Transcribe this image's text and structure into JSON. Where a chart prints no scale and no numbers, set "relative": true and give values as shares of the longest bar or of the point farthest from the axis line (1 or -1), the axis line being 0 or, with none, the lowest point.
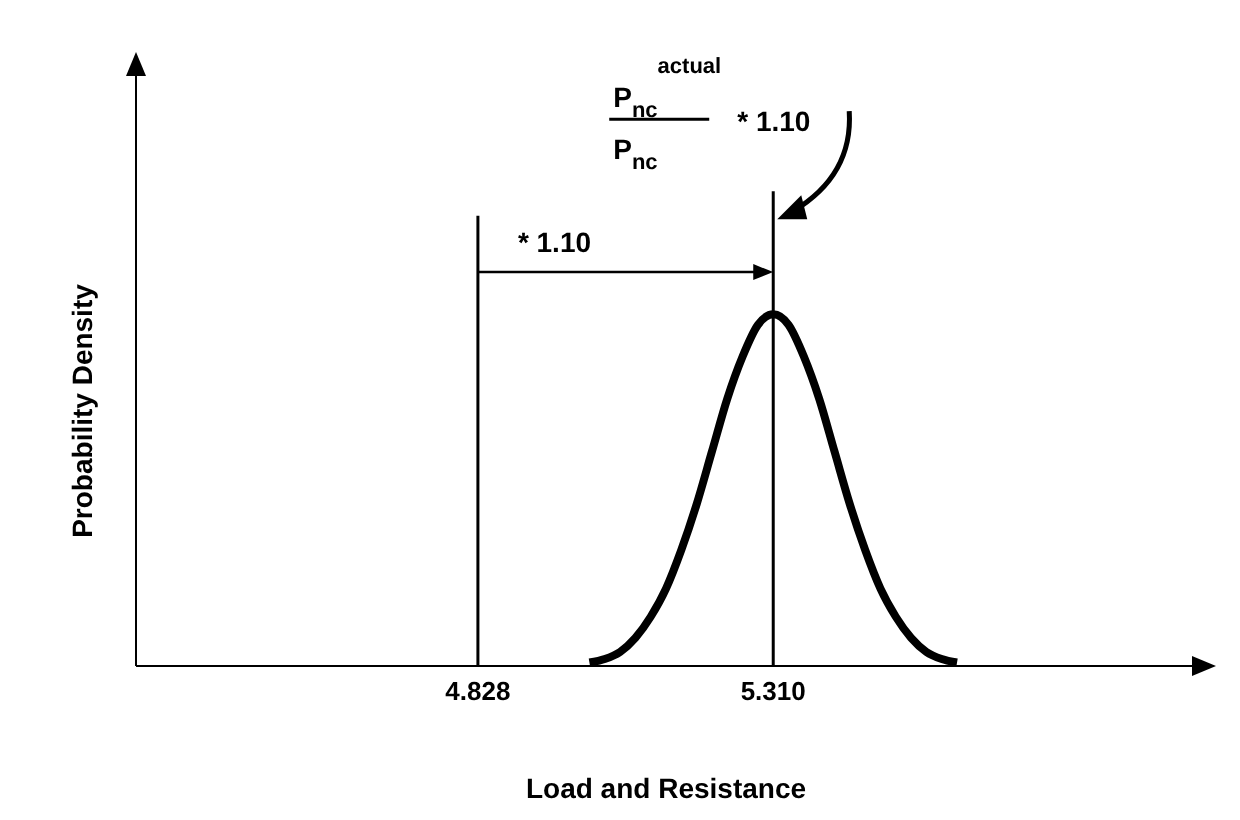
{
  "chart_data": {
    "type": "line",
    "relative": true,
    "xlabel": "Load and Resistance",
    "ylabel": "Probability Density",
    "x": [
      5.01,
      5.035,
      5.06,
      5.085,
      5.11,
      5.135,
      5.16,
      5.185,
      5.21,
      5.235,
      5.26,
      5.285,
      5.31,
      5.335,
      5.36,
      5.385,
      5.41,
      5.435,
      5.46,
      5.485,
      5.51,
      5.535,
      5.56,
      5.585,
      5.61
    ],
    "series": [
      {
        "color": "#000000",
        "values": [
          0.01,
          0.02,
          0.04,
          0.08,
          0.14,
          0.22,
          0.33,
          0.46,
          0.61,
          0.76,
          0.88,
          0.97,
          1,
          0.97,
          0.88,
          0.76,
          0.61,
          0.46,
          0.33,
          0.22,
          0.14,
          0.08,
          0.04,
          0.02,
          0.01
        ]
      }
    ],
    "xlim": [
      4.27,
      6.0
    ],
    "xticks": [
      4.828,
      {
        "value": 5.31,
        "label": "5.310"
      }
    ],
    "ref_lines": [
      {
        "axis": "x",
        "value": 4.828,
        "color": "#000000"
      },
      {
        "axis": "x",
        "value": 5.31,
        "color": "#000000"
      }
    ],
    "annotations": [
      "P$_{nc}$$^{actual}$",
      "P$_{nc}$",
      "* 1.10",
      "* 1.10"
    ],
    "marker": "none",
    "line_style": "solid"
  }
}
